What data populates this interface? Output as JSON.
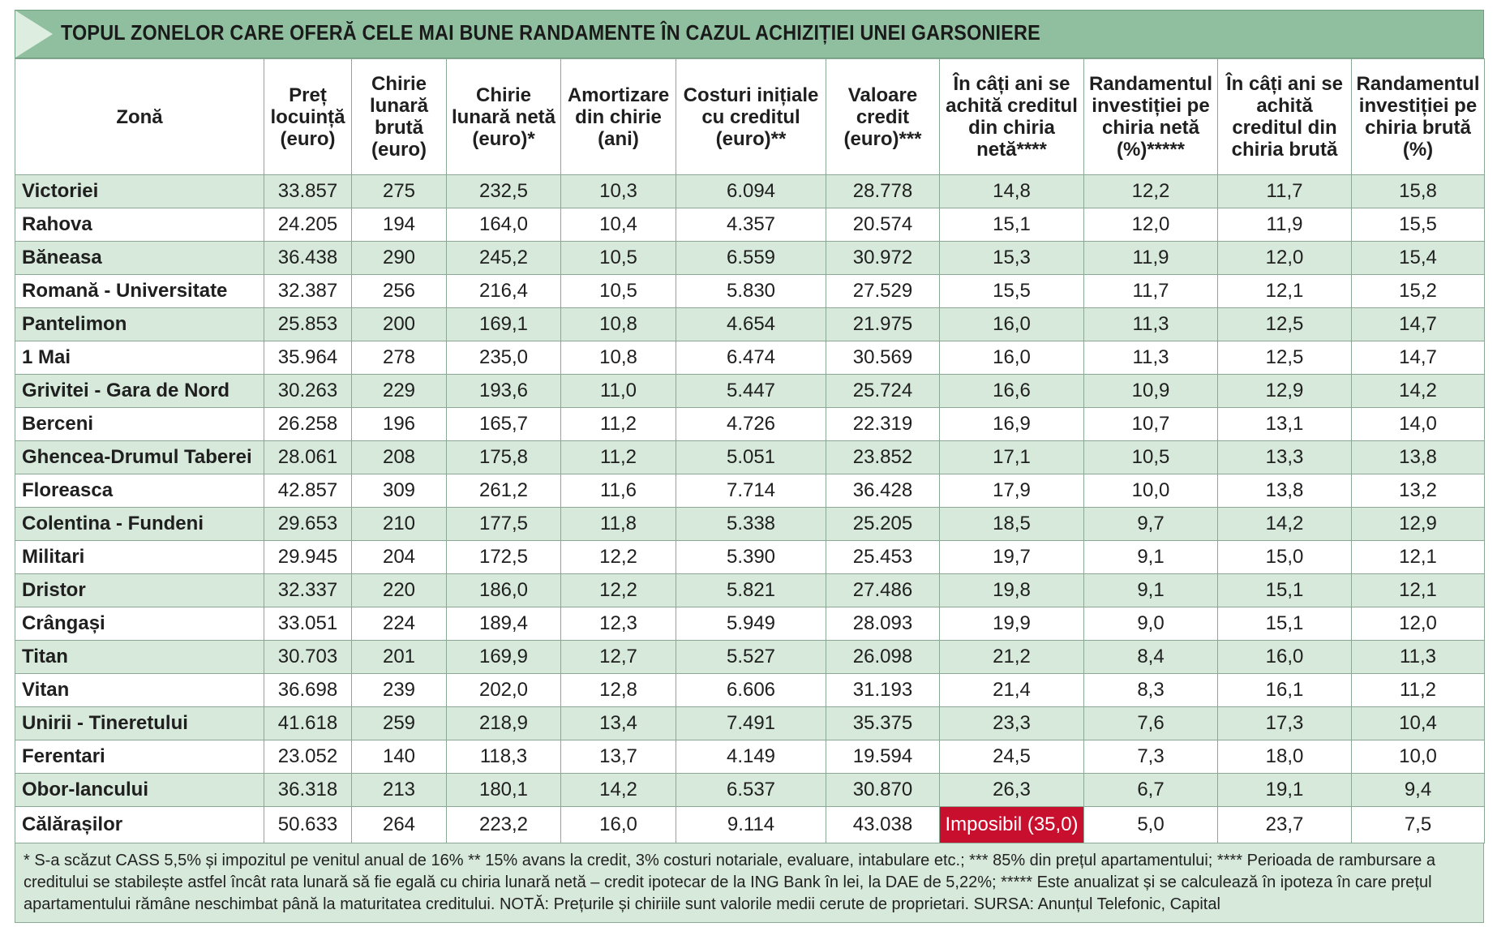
{
  "title": "TOPUL ZONELOR CARE OFERĂ CELE MAI BUNE RANDAMENTE ÎN CAZUL ACHIZIȚIEI UNEI GARSONIERE",
  "colors": {
    "header_band": "#8fbf9f",
    "row_shade": "#d6e9da",
    "highlight": "#c8102e"
  },
  "headers": [
    "Zonă",
    "Preț locuință (euro)",
    "Chirie lunară brută (euro)",
    "Chirie lunară netă (euro)*",
    "Amortizare din chirie (ani)",
    "Costuri inițiale cu creditul (euro)**",
    "Valoare credit (euro)***",
    "În câți ani se achită creditul din chiria netă****",
    "Randamentul investiției pe chiria netă (%)*****",
    "În câți ani se achită creditul din chiria brută",
    "Randamentul investiției pe chiria brută (%)"
  ],
  "rows": [
    [
      "Victoriei",
      "33.857",
      "275",
      "232,5",
      "10,3",
      "6.094",
      "28.778",
      "14,8",
      "12,2",
      "11,7",
      "15,8"
    ],
    [
      "Rahova",
      "24.205",
      "194",
      "164,0",
      "10,4",
      "4.357",
      "20.574",
      "15,1",
      "12,0",
      "11,9",
      "15,5"
    ],
    [
      "Băneasa",
      "36.438",
      "290",
      "245,2",
      "10,5",
      "6.559",
      "30.972",
      "15,3",
      "11,9",
      "12,0",
      "15,4"
    ],
    [
      "Romană - Universitate",
      "32.387",
      "256",
      "216,4",
      "10,5",
      "5.830",
      "27.529",
      "15,5",
      "11,7",
      "12,1",
      "15,2"
    ],
    [
      "Pantelimon",
      "25.853",
      "200",
      "169,1",
      "10,8",
      "4.654",
      "21.975",
      "16,0",
      "11,3",
      "12,5",
      "14,7"
    ],
    [
      "1 Mai",
      "35.964",
      "278",
      "235,0",
      "10,8",
      "6.474",
      "30.569",
      "16,0",
      "11,3",
      "12,5",
      "14,7"
    ],
    [
      "Grivitei - Gara de Nord",
      "30.263",
      "229",
      "193,6",
      "11,0",
      "5.447",
      "25.724",
      "16,6",
      "10,9",
      "12,9",
      "14,2"
    ],
    [
      "Berceni",
      "26.258",
      "196",
      "165,7",
      "11,2",
      "4.726",
      "22.319",
      "16,9",
      "10,7",
      "13,1",
      "14,0"
    ],
    [
      "Ghencea-Drumul Taberei",
      "28.061",
      "208",
      "175,8",
      "11,2",
      "5.051",
      "23.852",
      "17,1",
      "10,5",
      "13,3",
      "13,8"
    ],
    [
      "Floreasca",
      "42.857",
      "309",
      "261,2",
      "11,6",
      "7.714",
      "36.428",
      "17,9",
      "10,0",
      "13,8",
      "13,2"
    ],
    [
      "Colentina - Fundeni",
      "29.653",
      "210",
      "177,5",
      "11,8",
      "5.338",
      "25.205",
      "18,5",
      "9,7",
      "14,2",
      "12,9"
    ],
    [
      "Militari",
      "29.945",
      "204",
      "172,5",
      "12,2",
      "5.390",
      "25.453",
      "19,7",
      "9,1",
      "15,0",
      "12,1"
    ],
    [
      "Dristor",
      "32.337",
      "220",
      "186,0",
      "12,2",
      "5.821",
      "27.486",
      "19,8",
      "9,1",
      "15,1",
      "12,1"
    ],
    [
      "Crângași",
      "33.051",
      "224",
      "189,4",
      "12,3",
      "5.949",
      "28.093",
      "19,9",
      "9,0",
      "15,1",
      "12,0"
    ],
    [
      "Titan",
      "30.703",
      "201",
      "169,9",
      "12,7",
      "5.527",
      "26.098",
      "21,2",
      "8,4",
      "16,0",
      "11,3"
    ],
    [
      "Vitan",
      "36.698",
      "239",
      "202,0",
      "12,8",
      "6.606",
      "31.193",
      "21,4",
      "8,3",
      "16,1",
      "11,2"
    ],
    [
      "Unirii - Tineretului",
      "41.618",
      "259",
      "218,9",
      "13,4",
      "7.491",
      "35.375",
      "23,3",
      "7,6",
      "17,3",
      "10,4"
    ],
    [
      "Ferentari",
      "23.052",
      "140",
      "118,3",
      "13,7",
      "4.149",
      "19.594",
      "24,5",
      "7,3",
      "18,0",
      "10,0"
    ],
    [
      "Obor-Iancului",
      "36.318",
      "213",
      "180,1",
      "14,2",
      "6.537",
      "30.870",
      "26,3",
      "6,7",
      "19,1",
      "9,4"
    ],
    [
      "Călărașilor",
      "50.633",
      "264",
      "223,2",
      "16,0",
      "9.114",
      "43.038",
      "Imposibil (35,0)",
      "5,0",
      "23,7",
      "7,5"
    ]
  ],
  "footnote": "* S-a scăzut CASS 5,5% și impozitul pe venitul anual de 16% ** 15% avans la credit, 3% costuri notariale, evaluare, intabulare etc.; *** 85% din prețul apartamentului; **** Perioada de rambursare a creditului se stabilește astfel încât rata lunară să fie egală cu chiria lunară netă – credit ipotecar de la ING Bank în lei, la DAE de 5,22%; ***** Este anualizat și se calculează în ipoteza în care prețul apartamentului rămâne neschimbat până la maturitatea creditului. NOTĂ: Prețurile și chiriile sunt valorile medii cerute de proprietari. SURSA: Anunțul Telefonic, Capital"
}
